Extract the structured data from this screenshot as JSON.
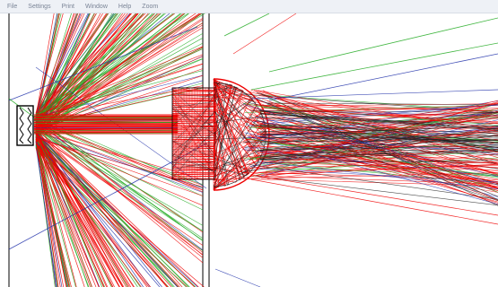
{
  "menubar": {
    "items": [
      {
        "label": "File"
      },
      {
        "label": "Settings"
      },
      {
        "label": "Print"
      },
      {
        "label": "Window"
      },
      {
        "label": "Help"
      },
      {
        "label": "Zoom"
      }
    ]
  },
  "viewport": {
    "content": "optical ray trace",
    "colors": {
      "background": "#ffffff",
      "ray_red": "#ee0000",
      "ray_green": "#22aa22",
      "ray_blue": "#2233aa",
      "ray_black": "#222222",
      "outline": "#000000"
    }
  }
}
